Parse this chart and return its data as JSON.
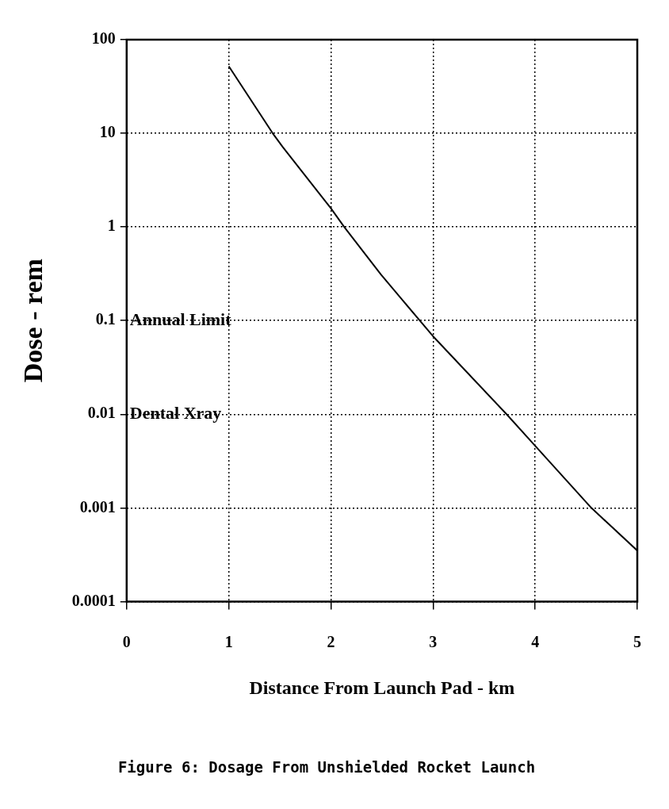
{
  "chart_data": {
    "type": "line",
    "title": "Figure 6: Dosage From Unshielded Rocket Launch",
    "xlabel": "Distance From Launch Pad - km",
    "ylabel": "Dose - rem",
    "x": [
      1,
      1.43,
      1.53,
      2,
      2.13,
      2.49,
      2.87,
      3,
      3.72,
      4,
      4.55,
      5
    ],
    "series": [
      {
        "color": "#000000",
        "values": [
          52,
          10,
          7.1,
          1.58,
          1,
          0.31,
          0.1,
          0.068,
          0.01,
          0.0046,
          0.001,
          0.00035
        ]
      }
    ],
    "xlim": [
      0,
      5
    ],
    "xticks": [
      0,
      1,
      2,
      3,
      4,
      5
    ],
    "ylim": [
      0.0001,
      100
    ],
    "yticks": [
      0.0001,
      0.001,
      0.01,
      0.1,
      1,
      10,
      100
    ],
    "log": "y",
    "grid": true,
    "legend": false,
    "marker": "none",
    "line_style": "solid",
    "annotations": [
      "Annual Limit",
      "Dental Xray"
    ]
  }
}
